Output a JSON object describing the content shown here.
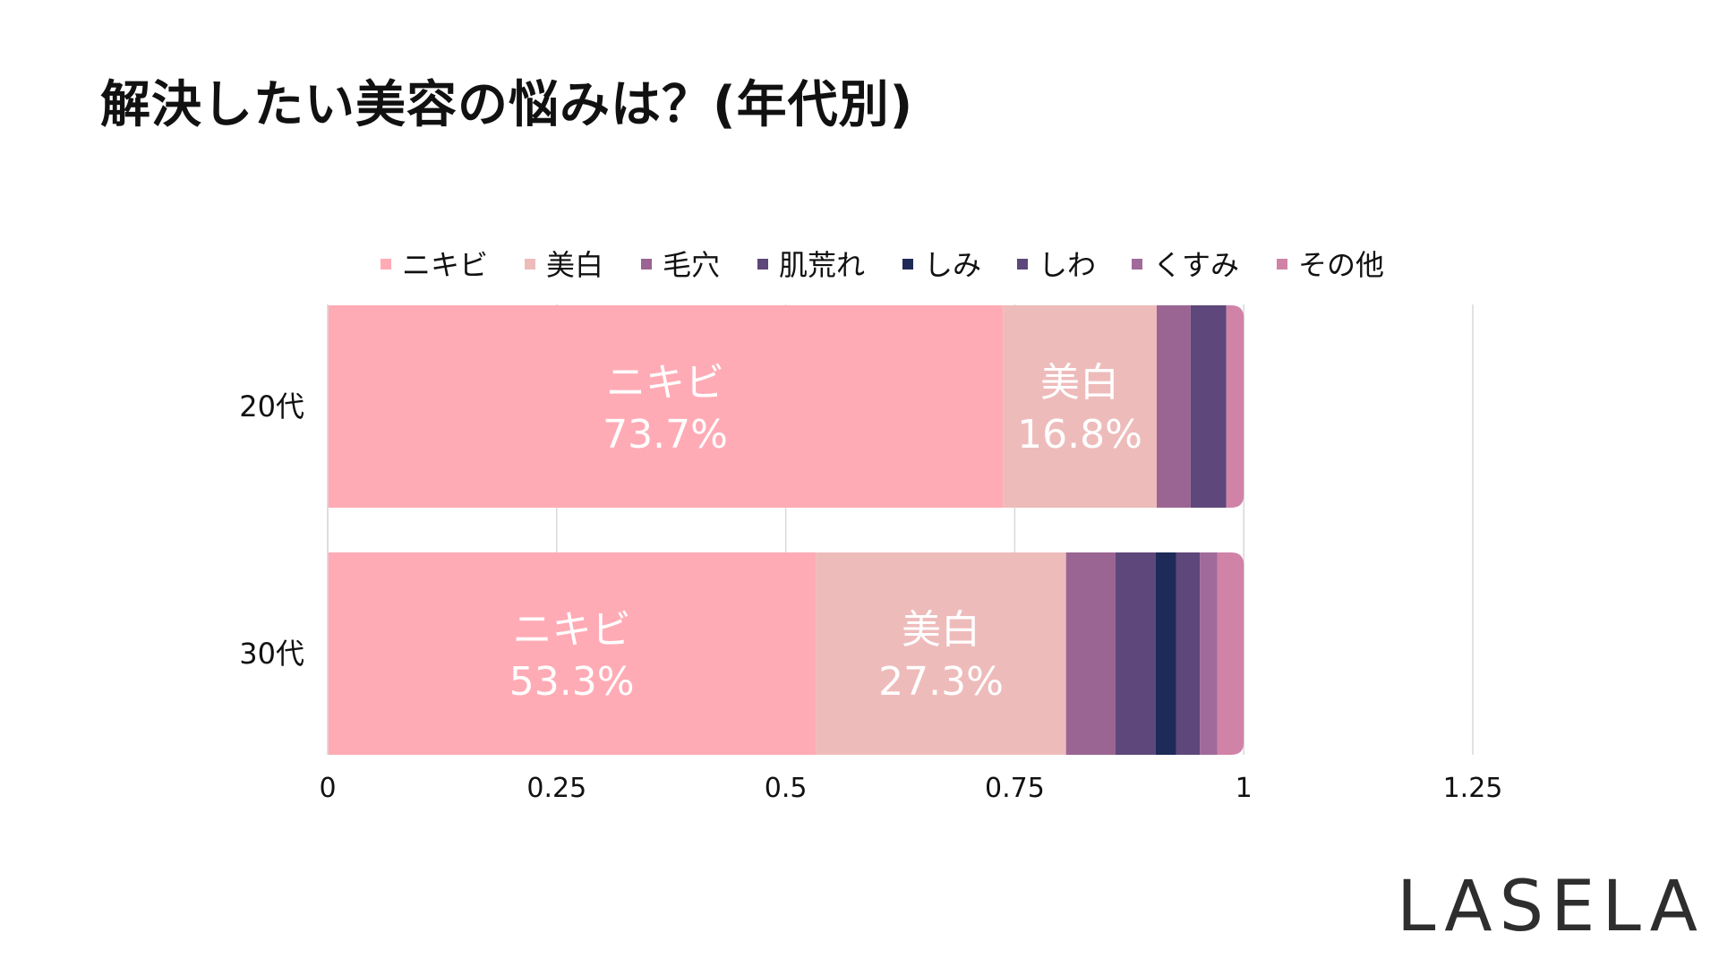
{
  "title": "解決したい美容の悩みは？(年代別)",
  "logo_text": "LASELA",
  "chart_data": {
    "type": "bar",
    "orientation": "horizontal",
    "stacked": true,
    "title": "解決したい美容の悩みは？(年代別)",
    "categories": [
      "20代",
      "30代"
    ],
    "xlim": [
      0,
      1.25
    ],
    "x_ticks": [
      "0",
      "0.25",
      "0.5",
      "0.75",
      "1",
      "1.25"
    ],
    "x_tick_values": [
      0,
      0.25,
      0.5,
      0.75,
      1,
      1.25
    ],
    "grid": "vertical",
    "legend_position": "top",
    "series": [
      {
        "name": "ニキビ",
        "color": "#ffabb5",
        "values": [
          0.737,
          0.533
        ],
        "labels": [
          "73.7%",
          "53.3%"
        ]
      },
      {
        "name": "美白",
        "color": "#eebbbb",
        "values": [
          0.168,
          0.273
        ],
        "labels": [
          "16.8%",
          "27.3%"
        ]
      },
      {
        "name": "毛穴",
        "color": "#9a6592",
        "values": [
          0.037,
          0.054
        ],
        "labels": [
          null,
          null
        ]
      },
      {
        "name": "肌荒れ",
        "color": "#5e477a",
        "values": [
          0.039,
          0.044
        ],
        "labels": [
          null,
          null
        ]
      },
      {
        "name": "しみ",
        "color": "#1e2a58",
        "values": [
          0.0,
          0.022
        ],
        "labels": [
          null,
          null
        ]
      },
      {
        "name": "しわ",
        "color": "#5e477a",
        "values": [
          0.0,
          0.026
        ],
        "labels": [
          null,
          null
        ]
      },
      {
        "name": "くすみ",
        "color": "#a06a9a",
        "values": [
          0.0,
          0.019
        ],
        "labels": [
          null,
          null
        ]
      },
      {
        "name": "その他",
        "color": "#d083a7",
        "values": [
          0.019,
          0.029
        ],
        "labels": [
          null,
          null
        ]
      }
    ]
  }
}
